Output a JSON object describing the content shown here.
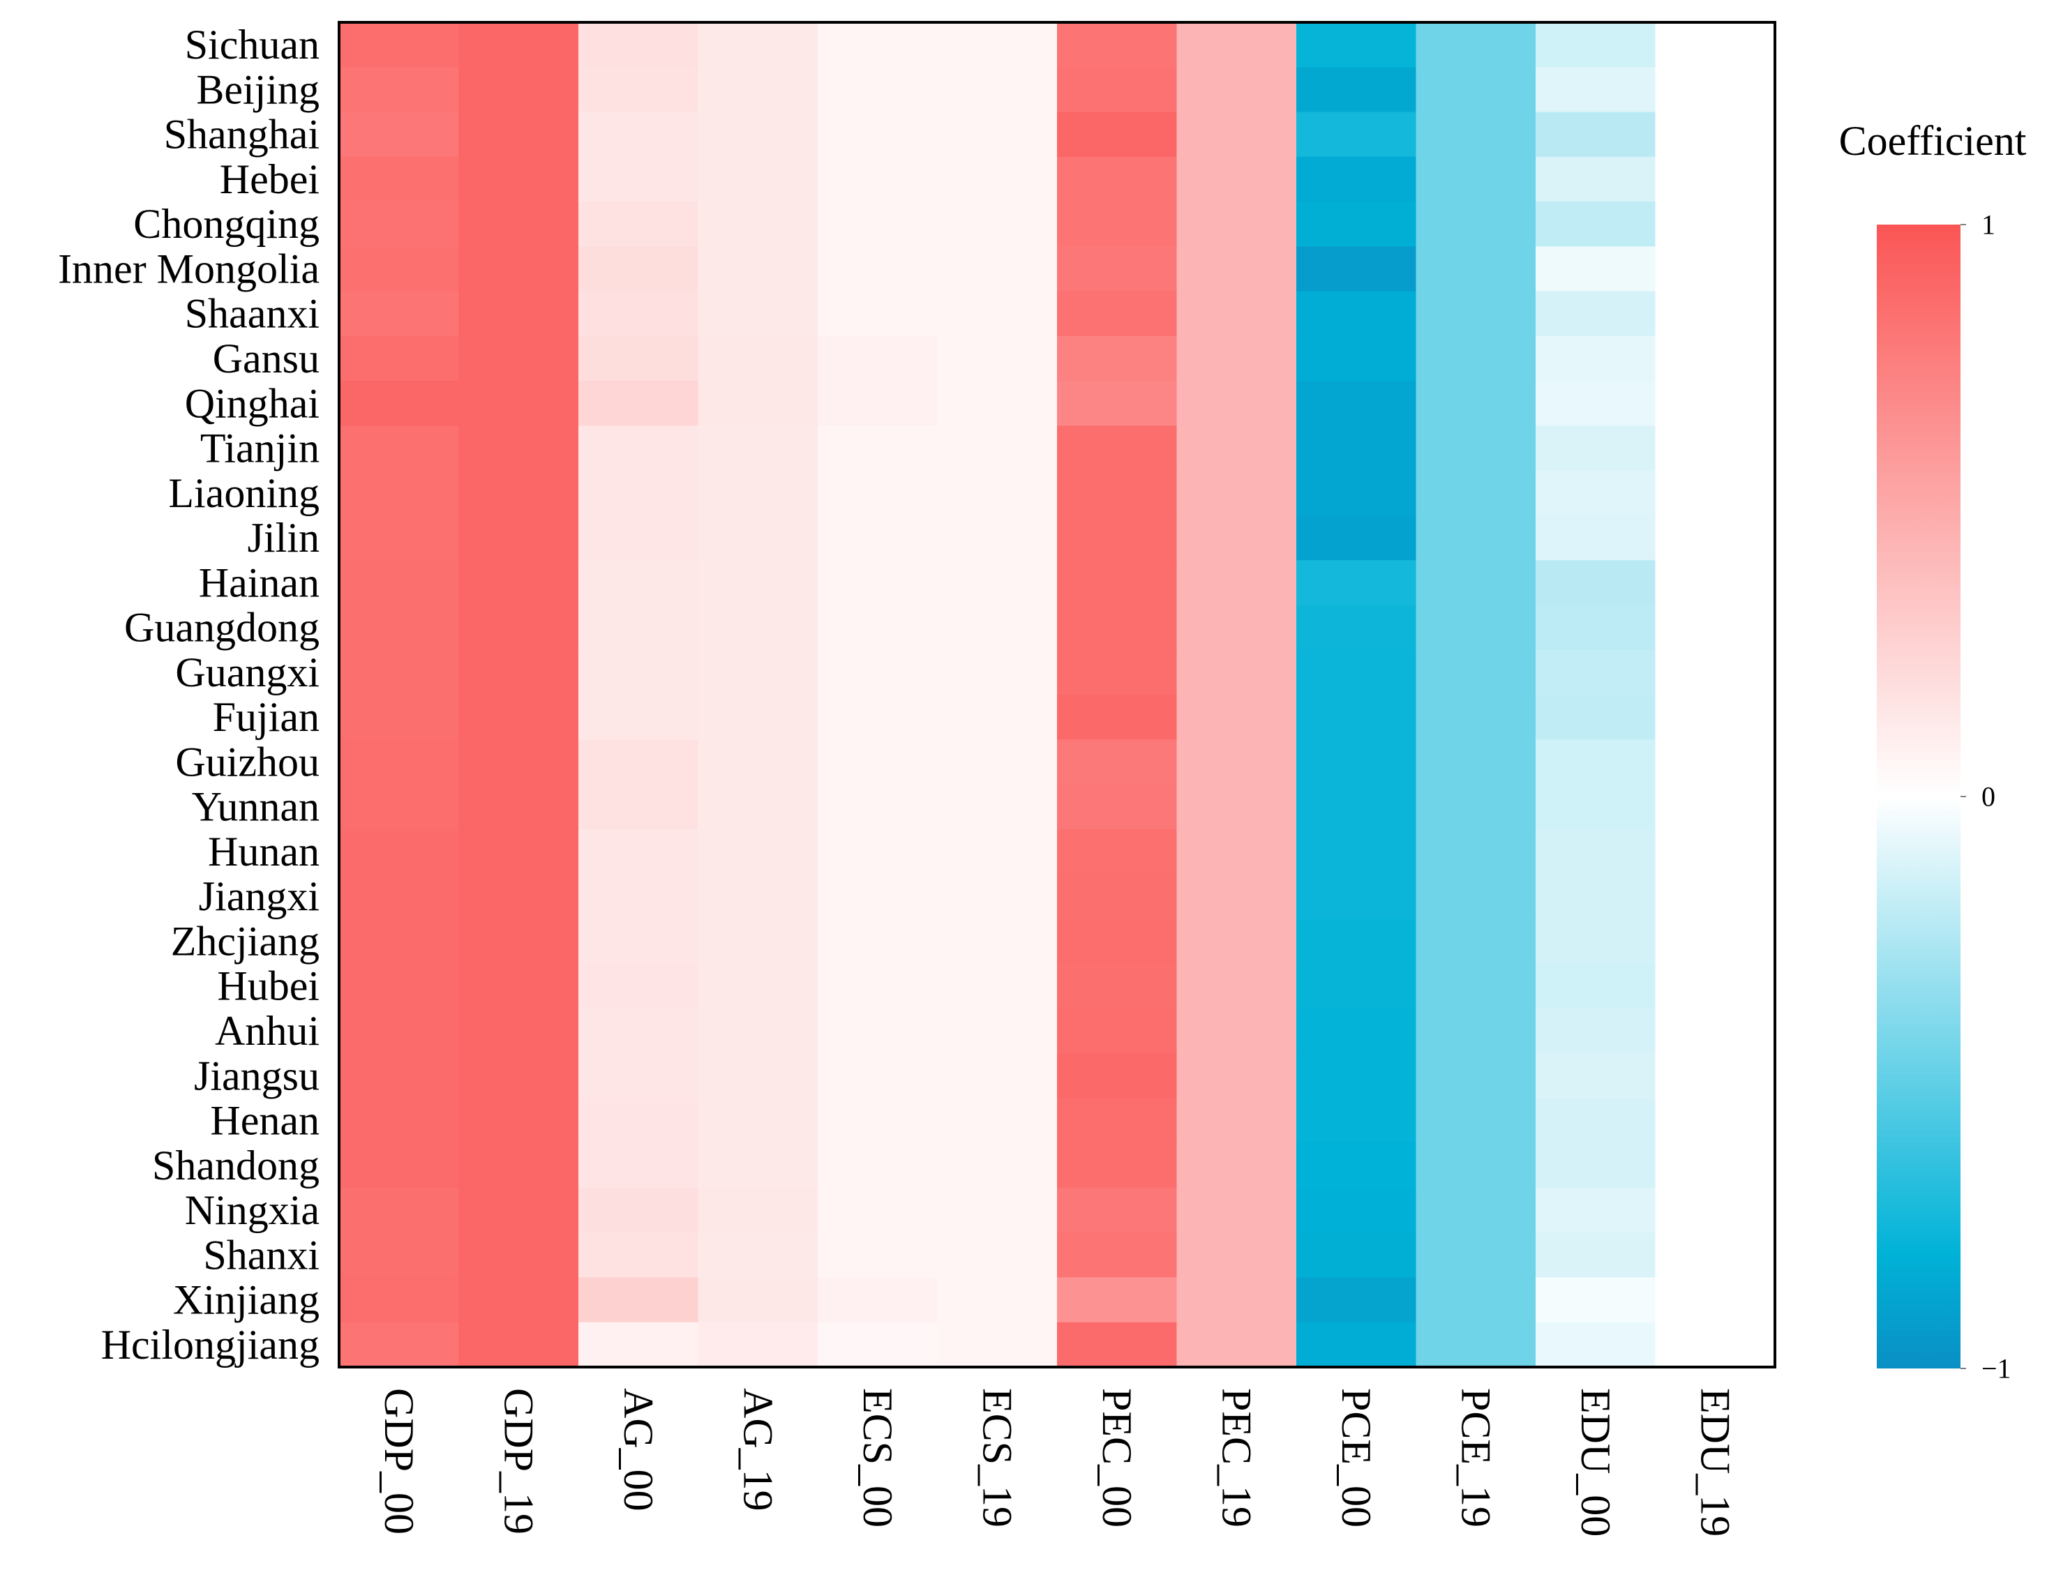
{
  "chart_data": {
    "type": "heatmap",
    "title": "",
    "xlabel": "",
    "ylabel": "",
    "legend_title": "Coefficient",
    "legend_position": "right",
    "color_range": [
      -1,
      1
    ],
    "colormap": {
      "negative": "#0a8fc4",
      "mid_negative": "#00b2d7",
      "zero": "#ffffff",
      "positive": "#fb5555"
    },
    "legend_ticks": [
      {
        "value": 1,
        "label": "1"
      },
      {
        "value": 0,
        "label": "0"
      },
      {
        "value": -1,
        "label": "−1"
      }
    ],
    "columns": [
      "GDP_00",
      "GDP_19",
      "AG_00",
      "AG_19",
      "ECS_00",
      "ECS_19",
      "PEC_00",
      "PEC_19",
      "PCE_00",
      "PCE_19",
      "EDU_00",
      "EDU_19"
    ],
    "rows": [
      "Sichuan",
      "Beijing",
      "Shanghai",
      "Hebei",
      "Chongqing",
      "Inner Mongolia",
      "Shaanxi",
      "Gansu",
      "Qinghai",
      "Tianjin",
      "Liaoning",
      "Jilin",
      "Hainan",
      "Guangdong",
      "Guangxi",
      "Fujian",
      "Guizhou",
      "Yunnan",
      "Hunan",
      "Jiangxi",
      "Zhcjiang",
      "Hubei",
      "Anhui",
      "Jiangsu",
      "Henan",
      "Shandong",
      "Ningxia",
      "Shanxi",
      "Xinjiang",
      "Hcilongjiang"
    ],
    "values": [
      [
        0.86,
        0.9,
        0.18,
        0.13,
        0.06,
        0.06,
        0.82,
        0.44,
        -0.78,
        -0.45,
        -0.15,
        0.0
      ],
      [
        0.82,
        0.9,
        0.17,
        0.13,
        0.06,
        0.06,
        0.83,
        0.44,
        -0.86,
        -0.45,
        -0.1,
        0.0
      ],
      [
        0.8,
        0.9,
        0.15,
        0.13,
        0.06,
        0.06,
        0.9,
        0.44,
        -0.74,
        -0.45,
        -0.22,
        0.0
      ],
      [
        0.84,
        0.9,
        0.15,
        0.13,
        0.06,
        0.06,
        0.82,
        0.44,
        -0.84,
        -0.45,
        -0.12,
        0.0
      ],
      [
        0.83,
        0.9,
        0.17,
        0.13,
        0.06,
        0.06,
        0.82,
        0.44,
        -0.82,
        -0.45,
        -0.2,
        0.0
      ],
      [
        0.84,
        0.9,
        0.2,
        0.13,
        0.06,
        0.06,
        0.8,
        0.44,
        -0.92,
        -0.45,
        -0.05,
        0.0
      ],
      [
        0.82,
        0.9,
        0.18,
        0.13,
        0.06,
        0.06,
        0.83,
        0.44,
        -0.83,
        -0.45,
        -0.13,
        0.0
      ],
      [
        0.86,
        0.9,
        0.2,
        0.14,
        0.08,
        0.06,
        0.74,
        0.44,
        -0.83,
        -0.45,
        -0.08,
        0.0
      ],
      [
        0.9,
        0.9,
        0.24,
        0.14,
        0.08,
        0.06,
        0.72,
        0.44,
        -0.87,
        -0.45,
        -0.07,
        0.0
      ],
      [
        0.84,
        0.9,
        0.15,
        0.13,
        0.06,
        0.06,
        0.86,
        0.44,
        -0.87,
        -0.45,
        -0.12,
        0.0
      ],
      [
        0.84,
        0.9,
        0.15,
        0.13,
        0.06,
        0.06,
        0.86,
        0.44,
        -0.87,
        -0.45,
        -0.1,
        0.0
      ],
      [
        0.84,
        0.9,
        0.15,
        0.13,
        0.06,
        0.06,
        0.86,
        0.44,
        -0.89,
        -0.45,
        -0.11,
        0.0
      ],
      [
        0.85,
        0.9,
        0.14,
        0.13,
        0.06,
        0.06,
        0.86,
        0.44,
        -0.74,
        -0.45,
        -0.22,
        0.0
      ],
      [
        0.85,
        0.9,
        0.14,
        0.13,
        0.06,
        0.06,
        0.86,
        0.44,
        -0.76,
        -0.45,
        -0.21,
        0.0
      ],
      [
        0.85,
        0.9,
        0.14,
        0.13,
        0.06,
        0.06,
        0.86,
        0.44,
        -0.77,
        -0.45,
        -0.19,
        0.0
      ],
      [
        0.85,
        0.9,
        0.14,
        0.13,
        0.06,
        0.06,
        0.88,
        0.44,
        -0.77,
        -0.45,
        -0.2,
        0.0
      ],
      [
        0.86,
        0.9,
        0.17,
        0.13,
        0.06,
        0.06,
        0.79,
        0.44,
        -0.77,
        -0.45,
        -0.15,
        0.0
      ],
      [
        0.86,
        0.9,
        0.17,
        0.13,
        0.06,
        0.06,
        0.8,
        0.44,
        -0.77,
        -0.45,
        -0.15,
        0.0
      ],
      [
        0.87,
        0.9,
        0.15,
        0.13,
        0.06,
        0.06,
        0.84,
        0.44,
        -0.77,
        -0.45,
        -0.14,
        0.0
      ],
      [
        0.87,
        0.9,
        0.15,
        0.13,
        0.06,
        0.06,
        0.85,
        0.44,
        -0.77,
        -0.45,
        -0.14,
        0.0
      ],
      [
        0.87,
        0.9,
        0.15,
        0.13,
        0.06,
        0.06,
        0.86,
        0.44,
        -0.78,
        -0.45,
        -0.14,
        0.0
      ],
      [
        0.87,
        0.9,
        0.16,
        0.13,
        0.06,
        0.06,
        0.85,
        0.44,
        -0.78,
        -0.45,
        -0.15,
        0.0
      ],
      [
        0.87,
        0.9,
        0.15,
        0.13,
        0.06,
        0.06,
        0.86,
        0.44,
        -0.79,
        -0.45,
        -0.13,
        0.0
      ],
      [
        0.87,
        0.9,
        0.15,
        0.13,
        0.06,
        0.06,
        0.88,
        0.44,
        -0.79,
        -0.45,
        -0.12,
        0.0
      ],
      [
        0.87,
        0.9,
        0.16,
        0.13,
        0.06,
        0.06,
        0.86,
        0.44,
        -0.79,
        -0.45,
        -0.13,
        0.0
      ],
      [
        0.87,
        0.9,
        0.16,
        0.13,
        0.06,
        0.06,
        0.86,
        0.44,
        -0.8,
        -0.45,
        -0.13,
        0.0
      ],
      [
        0.85,
        0.9,
        0.19,
        0.14,
        0.06,
        0.06,
        0.8,
        0.44,
        -0.81,
        -0.45,
        -0.1,
        0.0
      ],
      [
        0.85,
        0.9,
        0.17,
        0.13,
        0.06,
        0.06,
        0.82,
        0.44,
        -0.82,
        -0.45,
        -0.12,
        0.0
      ],
      [
        0.86,
        0.9,
        0.27,
        0.14,
        0.08,
        0.06,
        0.64,
        0.44,
        -0.88,
        -0.45,
        -0.03,
        0.0
      ],
      [
        0.82,
        0.9,
        0.08,
        0.12,
        0.05,
        0.06,
        0.87,
        0.44,
        -0.83,
        -0.45,
        -0.07,
        0.0
      ]
    ]
  }
}
